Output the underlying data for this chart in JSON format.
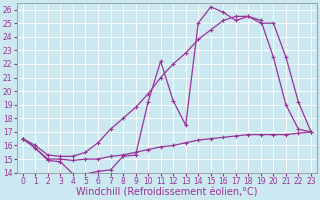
{
  "xlabel": "Windchill (Refroidissement éolien,°C)",
  "xlim": [
    -0.5,
    23.5
  ],
  "ylim": [
    14,
    26.5
  ],
  "yticks": [
    14,
    15,
    16,
    17,
    18,
    19,
    20,
    21,
    22,
    23,
    24,
    25,
    26
  ],
  "xticks": [
    0,
    1,
    2,
    3,
    4,
    5,
    6,
    7,
    8,
    9,
    10,
    11,
    12,
    13,
    14,
    15,
    16,
    17,
    18,
    19,
    20,
    21,
    22,
    23
  ],
  "line_color": "#993399",
  "bg_color": "#cce8f0",
  "line1_y": [
    16.5,
    15.8,
    14.9,
    14.8,
    13.9,
    13.9,
    14.1,
    14.2,
    15.2,
    15.3,
    19.2,
    22.2,
    19.3,
    17.5,
    25.0,
    26.2,
    25.8,
    25.2,
    25.5,
    25.0,
    25.0,
    22.5,
    19.2,
    17.0
  ],
  "line2_y": [
    16.5,
    15.8,
    15.0,
    15.0,
    14.9,
    15.0,
    15.0,
    15.2,
    15.3,
    15.5,
    15.7,
    15.9,
    16.0,
    16.2,
    16.4,
    16.5,
    16.6,
    16.7,
    16.8,
    16.8,
    16.8,
    16.8,
    16.9,
    17.0
  ],
  "line3_y": [
    16.5,
    16.0,
    15.3,
    15.2,
    15.2,
    15.5,
    16.2,
    17.2,
    18.0,
    18.8,
    19.8,
    21.0,
    22.0,
    22.8,
    23.8,
    24.5,
    25.2,
    25.5,
    25.5,
    25.2,
    22.5,
    19.0,
    17.2,
    17.0
  ],
  "marker_size": 3,
  "line_width": 0.9,
  "font_size_label": 7,
  "font_size_tick": 5.5
}
